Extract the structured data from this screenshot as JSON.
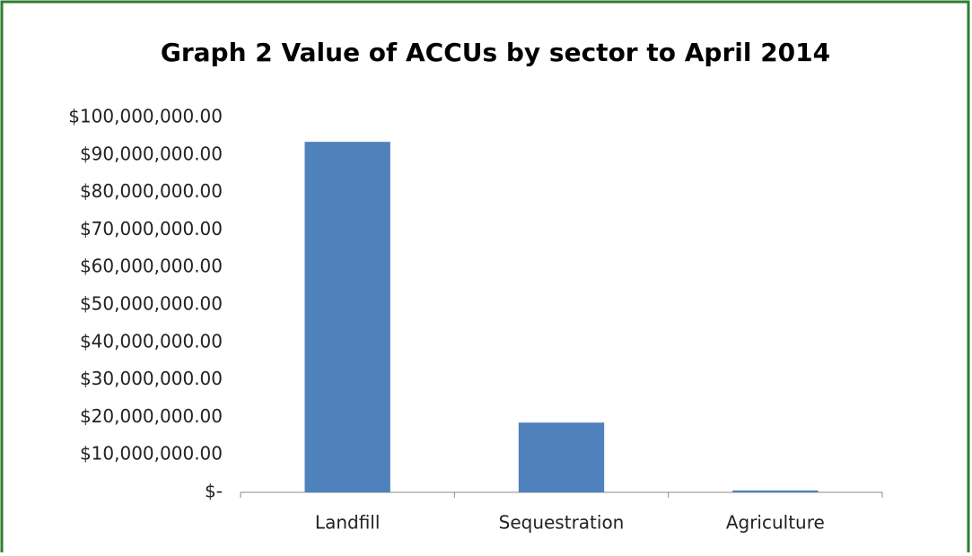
{
  "chart_data": {
    "type": "bar",
    "title": "Graph 2 Value of ACCUs by sector to April 2014",
    "categories": [
      "Landfill",
      "Sequestration",
      "Agriculture"
    ],
    "values": [
      93500000,
      18600000,
      500000
    ],
    "color": "#4f81bd",
    "ylim": [
      0,
      100000000
    ],
    "yticks": [
      {
        "value": 0,
        "label": "$-"
      },
      {
        "value": 10000000,
        "label": "$10,000,000.00"
      },
      {
        "value": 20000000,
        "label": "$20,000,000.00"
      },
      {
        "value": 30000000,
        "label": "$30,000,000.00"
      },
      {
        "value": 40000000,
        "label": "$40,000,000.00"
      },
      {
        "value": 50000000,
        "label": "$50,000,000.00"
      },
      {
        "value": 60000000,
        "label": "$60,000,000.00"
      },
      {
        "value": 70000000,
        "label": "$70,000,000.00"
      },
      {
        "value": 80000000,
        "label": "$80,000,000.00"
      },
      {
        "value": 90000000,
        "label": "$90,000,000.00"
      },
      {
        "value": 100000000,
        "label": "$100,000,000.00"
      }
    ],
    "grid": false
  }
}
